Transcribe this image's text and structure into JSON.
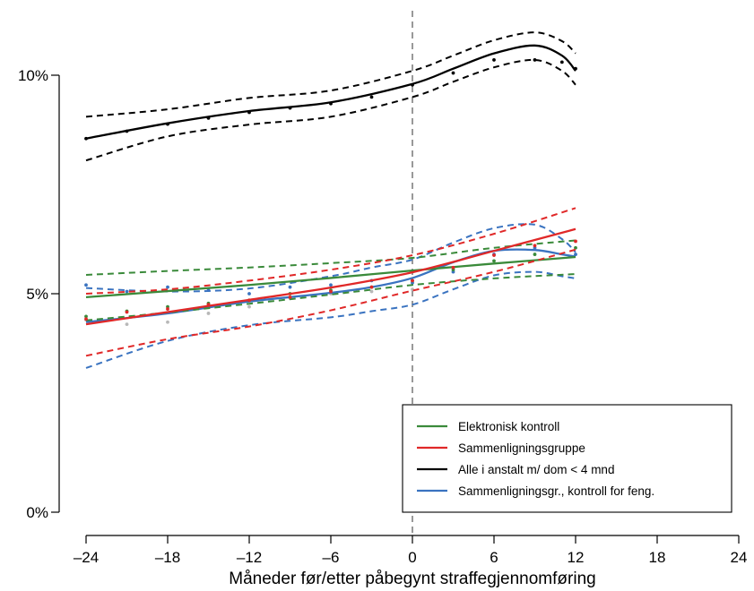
{
  "chart_data": {
    "type": "line",
    "title": "",
    "xlabel": "Måneder før/etter påbegynt straffegjennomføring",
    "ylabel": "",
    "xlim": [
      -24,
      24
    ],
    "ylim": [
      0,
      10
    ],
    "xticks": [
      -24,
      -18,
      -12,
      -6,
      0,
      6,
      12,
      18,
      24
    ],
    "xtick_labels": [
      "–24",
      "–18",
      "–12",
      "–6",
      "0",
      "6",
      "12",
      "18",
      "24"
    ],
    "yticks": [
      0,
      5,
      10
    ],
    "ytick_labels": [
      "0%",
      "5%",
      "10%"
    ],
    "vline": {
      "x": 0,
      "style": "dashed",
      "color": "#999999"
    },
    "legend": {
      "position": "bottom-right"
    },
    "series": [
      {
        "name": "Elektronisk kontroll",
        "color": "#3a8a3a",
        "x": [
          -24,
          -18,
          -12,
          -6,
          0,
          6,
          12
        ],
        "values": [
          4.92,
          5.06,
          5.2,
          5.36,
          5.53,
          5.69,
          5.84
        ],
        "ci_upper": [
          5.43,
          5.52,
          5.6,
          5.7,
          5.82,
          6.05,
          6.22
        ],
        "ci_lower": [
          4.39,
          4.57,
          4.77,
          4.98,
          5.2,
          5.35,
          5.45
        ],
        "points": [
          [
            -24,
            4.48
          ],
          [
            -21,
            4.6
          ],
          [
            -18,
            4.7
          ],
          [
            -15,
            4.78
          ],
          [
            -12,
            4.85
          ],
          [
            -9,
            5.0
          ],
          [
            -6,
            5.08
          ],
          [
            -3,
            5.15
          ],
          [
            0,
            5.3
          ],
          [
            3,
            5.55
          ],
          [
            6,
            5.75
          ],
          [
            9,
            5.9
          ],
          [
            12,
            6.05
          ]
        ]
      },
      {
        "name": "Sammenligningsgruppe",
        "color": "#e02828",
        "x": [
          -24,
          -18,
          -12,
          -6,
          0,
          6,
          12
        ],
        "values": [
          4.3,
          4.58,
          4.86,
          5.14,
          5.49,
          5.98,
          6.48
        ],
        "ci_upper": [
          5.0,
          5.1,
          5.3,
          5.55,
          5.88,
          6.37,
          6.96
        ],
        "ci_lower": [
          3.58,
          3.96,
          4.25,
          4.62,
          5.07,
          5.5,
          6.01
        ],
        "points": [
          [
            -24,
            4.42
          ],
          [
            -21,
            4.58
          ],
          [
            -18,
            4.65
          ],
          [
            -15,
            4.75
          ],
          [
            -12,
            4.85
          ],
          [
            -9,
            4.92
          ],
          [
            -6,
            5.05
          ],
          [
            -3,
            5.15
          ],
          [
            0,
            5.3
          ],
          [
            3,
            5.6
          ],
          [
            6,
            5.88
          ],
          [
            9,
            6.1
          ],
          [
            12,
            6.2
          ]
        ]
      },
      {
        "name": "Alle i anstalt m/ dom < 4 mnd",
        "color": "#000000",
        "x": [
          -24,
          -18,
          -12,
          -6,
          0,
          3,
          6,
          9,
          11,
          12
        ],
        "values": [
          8.55,
          8.9,
          9.18,
          9.38,
          9.8,
          10.15,
          10.5,
          10.68,
          10.45,
          10.1
        ],
        "ci_upper": [
          9.05,
          9.22,
          9.48,
          9.65,
          10.1,
          10.45,
          10.8,
          10.98,
          10.78,
          10.5
        ],
        "ci_lower": [
          8.05,
          8.6,
          8.87,
          9.05,
          9.5,
          9.85,
          10.18,
          10.35,
          10.1,
          9.78
        ],
        "points": [
          [
            -24,
            8.55
          ],
          [
            -21,
            8.72
          ],
          [
            -18,
            8.88
          ],
          [
            -15,
            9.02
          ],
          [
            -12,
            9.15
          ],
          [
            -9,
            9.25
          ],
          [
            -6,
            9.35
          ],
          [
            -3,
            9.5
          ],
          [
            0,
            9.78
          ],
          [
            3,
            10.05
          ],
          [
            6,
            10.35
          ],
          [
            9,
            10.35
          ],
          [
            11,
            10.3
          ],
          [
            12,
            10.15
          ]
        ]
      },
      {
        "name": "Sammenligningsgr., kontroll for feng.",
        "color": "#3a73c0",
        "x": [
          -24,
          -18,
          -12,
          -6,
          -3,
          0,
          3,
          6,
          9,
          11,
          12
        ],
        "values": [
          4.35,
          4.55,
          4.82,
          5.02,
          5.15,
          5.36,
          5.72,
          5.98,
          6.0,
          5.9,
          5.85
        ],
        "ci_upper": [
          5.13,
          5.05,
          5.12,
          5.4,
          5.6,
          5.78,
          6.17,
          6.5,
          6.58,
          6.25,
          5.95
        ],
        "ci_lower": [
          3.3,
          3.92,
          4.28,
          4.46,
          4.6,
          4.75,
          5.1,
          5.42,
          5.5,
          5.4,
          5.35
        ],
        "points": [
          [
            -24,
            5.2
          ],
          [
            -21,
            5.05
          ],
          [
            -18,
            5.15
          ],
          [
            -15,
            5.08
          ],
          [
            -12,
            5.0
          ],
          [
            -9,
            5.15
          ],
          [
            -6,
            5.2
          ],
          [
            -3,
            5.3
          ],
          [
            0,
            5.25
          ],
          [
            3,
            5.5
          ],
          [
            6,
            5.9
          ],
          [
            9,
            6.05
          ],
          [
            12,
            5.9
          ]
        ]
      }
    ],
    "extra_points": {
      "color": "#b8b8b8",
      "points": [
        [
          -24,
          4.4
        ],
        [
          -21,
          4.3
        ],
        [
          -18,
          4.35
        ],
        [
          -15,
          4.55
        ],
        [
          -12,
          4.7
        ],
        [
          -9,
          4.9
        ],
        [
          -6,
          5.0
        ],
        [
          -3,
          5.05
        ],
        [
          0,
          5.1
        ]
      ]
    }
  }
}
